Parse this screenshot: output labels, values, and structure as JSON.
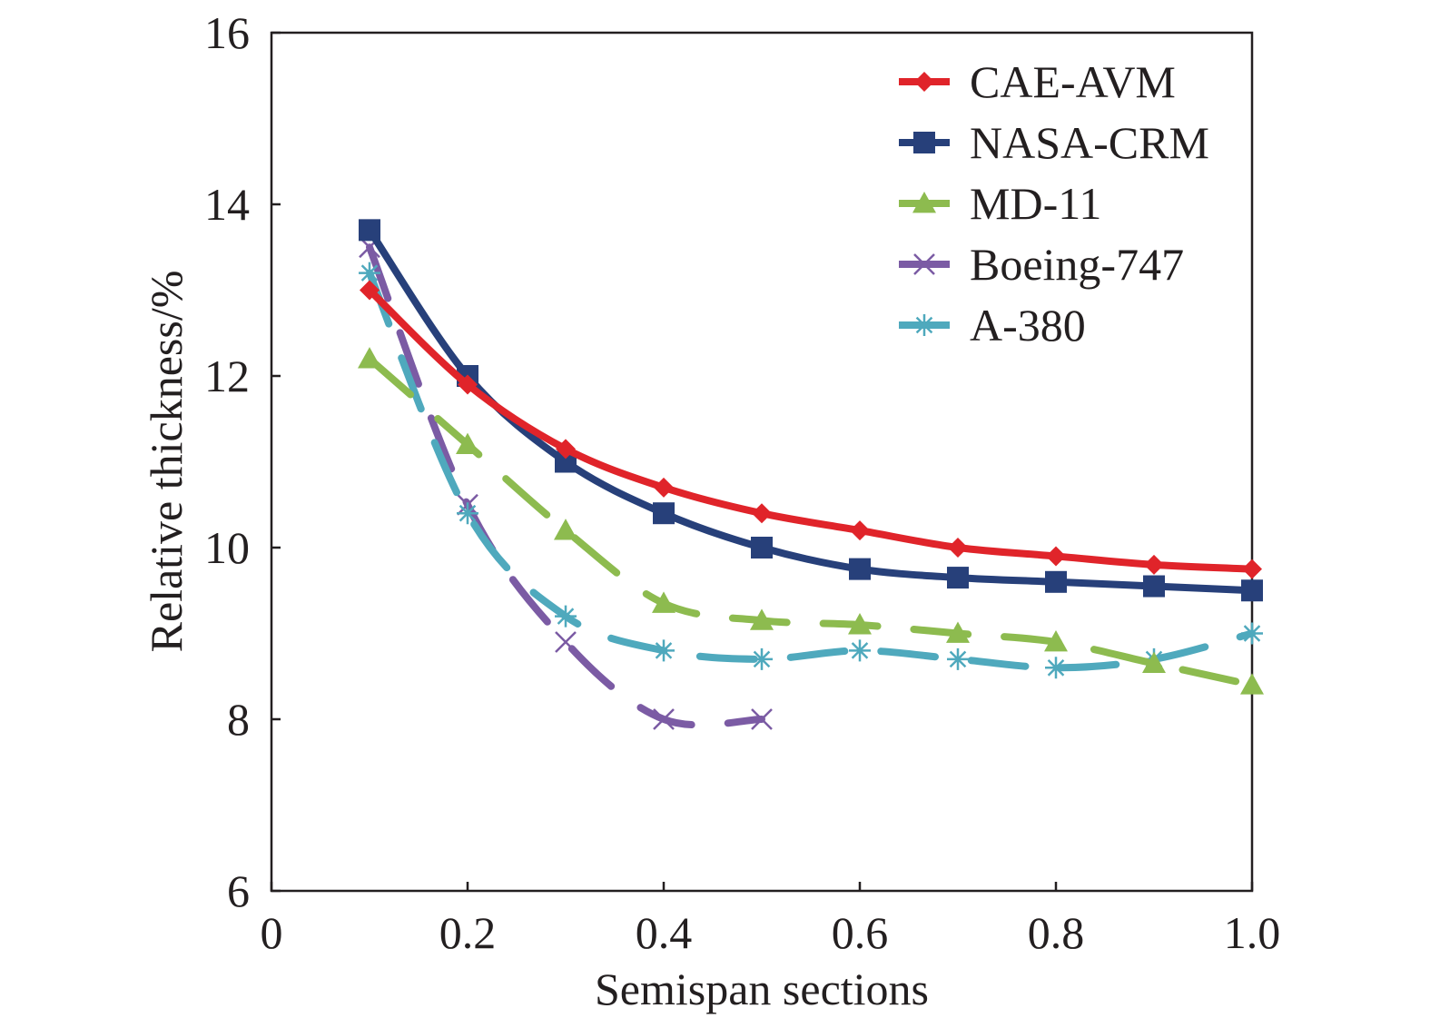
{
  "chart_data": {
    "type": "line",
    "title": "",
    "xlabel": "Semispan sections",
    "ylabel": "Relative thickness/%",
    "xlim": [
      0,
      1.0
    ],
    "ylim": [
      6,
      16
    ],
    "xticks": [
      0,
      0.2,
      0.4,
      0.6,
      0.8,
      1.0
    ],
    "xtick_labels": [
      "0",
      "0.2",
      "0.4",
      "0.6",
      "0.8",
      "1.0"
    ],
    "yticks": [
      6,
      8,
      10,
      12,
      14,
      16
    ],
    "ytick_labels": [
      "6",
      "8",
      "10",
      "12",
      "14",
      "16"
    ],
    "grid": false,
    "legend_position": "top-right",
    "series": [
      {
        "name": "CAE-AVM",
        "color": "#e0242a",
        "marker": "diamond",
        "line_style": "solid",
        "x": [
          0.1,
          0.2,
          0.3,
          0.4,
          0.5,
          0.6,
          0.7,
          0.8,
          0.9,
          1.0
        ],
        "values": [
          13.0,
          11.9,
          11.15,
          10.7,
          10.4,
          10.2,
          10.0,
          9.9,
          9.8,
          9.75
        ]
      },
      {
        "name": "NASA-CRM",
        "color": "#27407a",
        "marker": "square",
        "line_style": "solid",
        "x": [
          0.1,
          0.2,
          0.3,
          0.4,
          0.5,
          0.6,
          0.7,
          0.8,
          0.9,
          1.0
        ],
        "values": [
          13.7,
          12.0,
          11.0,
          10.4,
          10.0,
          9.75,
          9.65,
          9.6,
          9.55,
          9.5
        ]
      },
      {
        "name": "MD-11",
        "color": "#8dbb4f",
        "marker": "triangle",
        "line_style": "dashed",
        "x": [
          0.1,
          0.2,
          0.3,
          0.4,
          0.5,
          0.6,
          0.7,
          0.8,
          0.9,
          1.0
        ],
        "values": [
          12.2,
          11.2,
          10.2,
          9.35,
          9.15,
          9.1,
          9.0,
          8.9,
          8.65,
          8.4
        ]
      },
      {
        "name": "Boeing-747",
        "color": "#7b5ba4",
        "marker": "x",
        "line_style": "dashed",
        "x": [
          0.1,
          0.2,
          0.3,
          0.4,
          0.5
        ],
        "values": [
          13.5,
          10.5,
          8.9,
          8.0,
          8.0
        ]
      },
      {
        "name": "A-380",
        "color": "#4fa9bd",
        "marker": "asterisk",
        "line_style": "dashed",
        "x": [
          0.1,
          0.2,
          0.3,
          0.4,
          0.5,
          0.6,
          0.7,
          0.8,
          0.9,
          1.0
        ],
        "values": [
          13.2,
          10.4,
          9.2,
          8.8,
          8.7,
          8.8,
          8.7,
          8.6,
          8.7,
          9.0
        ]
      }
    ]
  }
}
